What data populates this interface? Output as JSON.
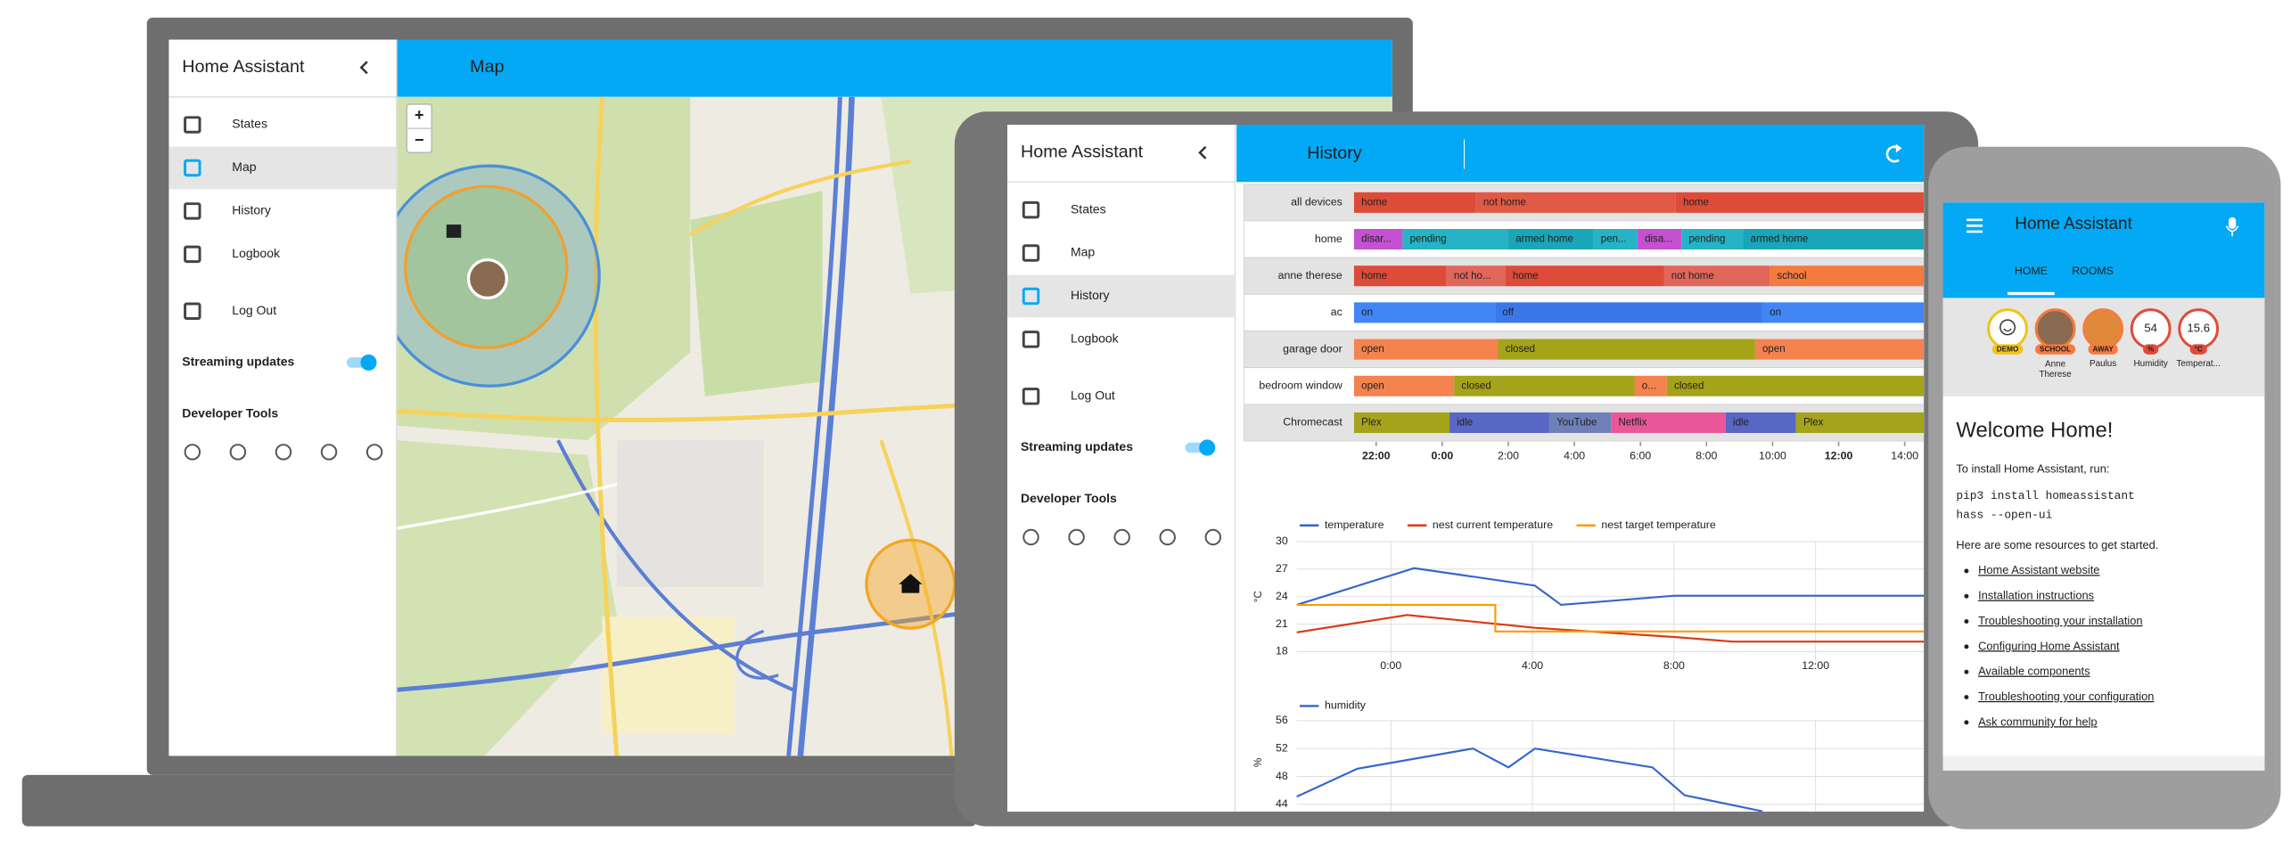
{
  "laptop": {
    "sidebar": {
      "title": "Home Assistant",
      "menu": [
        "States",
        "Map",
        "History",
        "Logbook",
        "Log Out"
      ],
      "streaming": "Streaming updates",
      "dev_tools": "Developer Tools"
    },
    "header": "Map",
    "map": {
      "zoom_in": "+",
      "zoom_out": "−"
    }
  },
  "tablet": {
    "sidebar": {
      "title": "Home Assistant",
      "menu": [
        "States",
        "Map",
        "History",
        "Logbook",
        "Log Out"
      ],
      "streaming": "Streaming updates",
      "dev_tools": "Developer Tools"
    },
    "header": "History",
    "timeline": {
      "xlim": [
        21.33,
        38.58
      ],
      "xticks": [
        {
          "value": 22,
          "label": "22:00"
        },
        {
          "value": 24,
          "label": "0:00"
        },
        {
          "value": 26,
          "label": "2:00"
        },
        {
          "value": 28,
          "label": "4:00"
        },
        {
          "value": 30,
          "label": "6:00"
        },
        {
          "value": 32,
          "label": "8:00"
        },
        {
          "value": 34,
          "label": "10:00"
        },
        {
          "value": 36,
          "label": "12:00"
        },
        {
          "value": 38,
          "label": "14:00"
        }
      ],
      "rows": [
        {
          "name": "all devices",
          "segments": [
            {
              "label": "home",
              "start": 21.33,
              "end": 25.02,
              "color": "#dd4b39"
            },
            {
              "label": "not home",
              "start": 25.02,
              "end": 31.07,
              "color": "#e05a45"
            },
            {
              "label": "home",
              "start": 31.07,
              "end": 38.58,
              "color": "#dd4b39"
            }
          ]
        },
        {
          "name": "home",
          "segments": [
            {
              "label": "disar...",
              "start": 21.33,
              "end": 22.8,
              "color": "#c451cf"
            },
            {
              "label": "pending",
              "start": 22.8,
              "end": 26,
              "color": "#26b3c6"
            },
            {
              "label": "armed home",
              "start": 26,
              "end": 28.58,
              "color": "#1aa5b8"
            },
            {
              "label": "pen...",
              "start": 28.58,
              "end": 29.91,
              "color": "#26b3c6"
            },
            {
              "label": "disa...",
              "start": 29.91,
              "end": 31.24,
              "color": "#c451cf"
            },
            {
              "label": "pending",
              "start": 31.24,
              "end": 33.11,
              "color": "#26b3c6"
            },
            {
              "label": "armed home",
              "start": 33.11,
              "end": 38.58,
              "color": "#1aa5b8"
            }
          ]
        },
        {
          "name": "anne therese",
          "segments": [
            {
              "label": "home",
              "start": 21.33,
              "end": 24.13,
              "color": "#dd4b39"
            },
            {
              "label": "not ho...",
              "start": 24.13,
              "end": 25.91,
              "color": "#e0675a"
            },
            {
              "label": "home",
              "start": 25.91,
              "end": 30.71,
              "color": "#dd4b39"
            },
            {
              "label": "not home",
              "start": 30.71,
              "end": 33.91,
              "color": "#e0675a"
            },
            {
              "label": "school",
              "start": 33.91,
              "end": 38.58,
              "color": "#f47b3f"
            }
          ]
        },
        {
          "name": "ac",
          "segments": [
            {
              "label": "on",
              "start": 21.33,
              "end": 25.6,
              "color": "#4285f4"
            },
            {
              "label": "off",
              "start": 25.6,
              "end": 33.69,
              "color": "#3b78e7"
            },
            {
              "label": "on",
              "start": 33.69,
              "end": 38.58,
              "color": "#4285f4"
            }
          ]
        },
        {
          "name": "garage door",
          "segments": [
            {
              "label": "open",
              "start": 21.33,
              "end": 25.69,
              "color": "#f4834f"
            },
            {
              "label": "closed",
              "start": 25.69,
              "end": 33.47,
              "color": "#a5a319"
            },
            {
              "label": "open",
              "start": 33.47,
              "end": 38.58,
              "color": "#f4834f"
            }
          ]
        },
        {
          "name": "bedroom window",
          "segments": [
            {
              "label": "open",
              "start": 21.33,
              "end": 24.36,
              "color": "#f4834f"
            },
            {
              "label": "closed",
              "start": 24.36,
              "end": 29.82,
              "color": "#a5a319"
            },
            {
              "label": "o...",
              "start": 29.82,
              "end": 30.8,
              "color": "#f4834f"
            },
            {
              "label": "closed",
              "start": 30.8,
              "end": 38.58,
              "color": "#a5a319"
            }
          ]
        },
        {
          "name": "Chromecast",
          "segments": [
            {
              "label": "Plex",
              "start": 21.33,
              "end": 24.22,
              "color": "#a5a319"
            },
            {
              "label": "idle",
              "start": 24.22,
              "end": 27.24,
              "color": "#5866c4"
            },
            {
              "label": "YouTube",
              "start": 27.24,
              "end": 29.11,
              "color": "#6f80b8"
            },
            {
              "label": "Netflix",
              "start": 29.11,
              "end": 32.58,
              "color": "#e9579a"
            },
            {
              "label": "idle",
              "start": 32.58,
              "end": 34.71,
              "color": "#5866c4"
            },
            {
              "label": "Plex",
              "start": 34.71,
              "end": 38.58,
              "color": "#a5a319"
            }
          ]
        }
      ]
    },
    "temperature_chart": {
      "type": "line",
      "ylabel": "°C",
      "xlim": [
        21.34,
        39.06
      ],
      "xticks": [
        {
          "value": 24,
          "label": "0:00"
        },
        {
          "value": 28,
          "label": "4:00"
        },
        {
          "value": 32,
          "label": "8:00"
        },
        {
          "value": 36,
          "label": "12:00"
        }
      ],
      "ylim": [
        18,
        30
      ],
      "yticks": [
        18,
        21,
        24,
        27,
        30
      ],
      "series": [
        {
          "name": "temperature",
          "color": "#3366cc",
          "x": [
            21.34,
            24.66,
            28.07,
            28.81,
            32,
            39.06
          ],
          "values": [
            23.1,
            27.1,
            25.2,
            23.1,
            24.1,
            24.1
          ]
        },
        {
          "name": "nest current temperature",
          "color": "#dc3912",
          "x": [
            21.34,
            24.46,
            28.07,
            32,
            33.66,
            39.06
          ],
          "values": [
            20.1,
            22,
            20.6,
            19.6,
            19.1,
            19.1
          ]
        },
        {
          "name": "nest target temperature",
          "color": "#ff9900",
          "x": [
            21.34,
            26.95,
            26.95,
            39.06
          ],
          "values": [
            23.1,
            23.1,
            20.2,
            20.2
          ]
        }
      ]
    },
    "humidity_chart": {
      "type": "line",
      "ylabel": "%",
      "xlim": [
        21.34,
        39.06
      ],
      "ylim": [
        44,
        56
      ],
      "yticks": [
        44,
        48,
        52,
        56
      ],
      "series": [
        {
          "name": "humidity",
          "color": "#3366cc",
          "x": [
            21.34,
            23.05,
            26.32,
            27.32,
            28.07,
            31.39,
            32.3,
            34.5
          ],
          "values": [
            45.1,
            49.1,
            52,
            49.3,
            52,
            49.3,
            45.3,
            43
          ]
        }
      ]
    }
  },
  "phone": {
    "header": "Home Assistant",
    "tabs": [
      "HOME",
      "ROOMS"
    ],
    "badges": [
      {
        "label": "DEMO"
      },
      {
        "label": "SCHOOL",
        "name": "Anne Therese"
      },
      {
        "label": "AWAY",
        "name": "Paulus"
      },
      {
        "value": 54,
        "label": "%",
        "name": "Humidity"
      },
      {
        "value": 15.6,
        "label": "°C",
        "name": "Temperat..."
      }
    ],
    "card": {
      "title": "Welcome Home!",
      "intro": "To install Home Assistant, run:",
      "code": [
        "pip3 install homeassistant",
        "hass --open-ui"
      ],
      "resources": "Here are some resources to get started.",
      "links": [
        "Home Assistant website",
        "Installation instructions",
        "Troubleshooting your installation",
        "Configuring Home Assistant",
        "Available components",
        "Troubleshooting your configuration",
        "Ask community for help"
      ]
    }
  }
}
